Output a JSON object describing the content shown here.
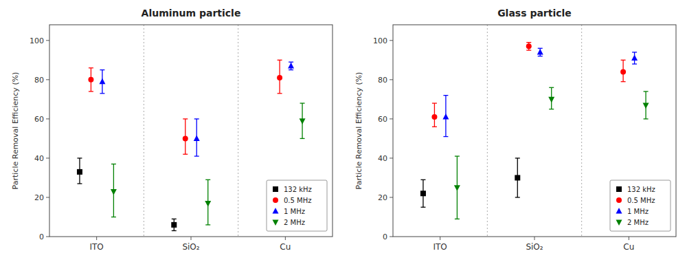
{
  "chart_data": [
    {
      "type": "errorbar",
      "title": "Aluminum particle",
      "categories": [
        "ITO",
        "SiO₂",
        "Cu"
      ],
      "ylabel": "Particle Removal Efficiency (%)",
      "series": [
        {
          "name": "132 kHz",
          "color": "black",
          "marker": "square",
          "values": [
            33,
            6,
            null
          ],
          "error_low": [
            6,
            3,
            null
          ],
          "error_high": [
            7,
            3,
            null
          ]
        },
        {
          "name": "0.5 MHz",
          "color": "red",
          "marker": "circle",
          "values": [
            80,
            50,
            81
          ],
          "error_low": [
            6,
            8,
            8
          ],
          "error_high": [
            6,
            10,
            9
          ]
        },
        {
          "name": "1 MHz",
          "color": "blue",
          "marker": "triangle-up",
          "values": [
            79,
            50,
            87
          ],
          "error_low": [
            6,
            9,
            2
          ],
          "error_high": [
            6,
            10,
            2
          ]
        },
        {
          "name": "2 MHz",
          "color": "green",
          "marker": "triangle-down",
          "values": [
            23,
            17,
            59
          ],
          "error_low": [
            13,
            11,
            9
          ],
          "error_high": [
            14,
            12,
            9
          ]
        }
      ],
      "ylim": [
        0,
        108
      ],
      "yticks": [
        0,
        20,
        40,
        60,
        80,
        100
      ],
      "grid": false,
      "legend": "lower right"
    },
    {
      "type": "errorbar",
      "title": "Glass particle",
      "categories": [
        "ITO",
        "SiO₂",
        "Cu"
      ],
      "ylabel": "Particle Removal Efficiency (%)",
      "series": [
        {
          "name": "132 kHz",
          "color": "black",
          "marker": "square",
          "values": [
            22,
            30,
            null
          ],
          "error_low": [
            7,
            10,
            null
          ],
          "error_high": [
            7,
            10,
            null
          ]
        },
        {
          "name": "0.5 MHz",
          "color": "red",
          "marker": "circle",
          "values": [
            61,
            97,
            84
          ],
          "error_low": [
            5,
            2,
            5
          ],
          "error_high": [
            7,
            2,
            6
          ]
        },
        {
          "name": "1 MHz",
          "color": "blue",
          "marker": "triangle-up",
          "values": [
            61,
            94,
            91
          ],
          "error_low": [
            10,
            2,
            3
          ],
          "error_high": [
            11,
            2,
            3
          ]
        },
        {
          "name": "2 MHz",
          "color": "green",
          "marker": "triangle-down",
          "values": [
            25,
            70,
            67
          ],
          "error_low": [
            16,
            5,
            7
          ],
          "error_high": [
            16,
            6,
            7
          ]
        }
      ],
      "ylim": [
        0,
        108
      ],
      "yticks": [
        0,
        20,
        40,
        60,
        80,
        100
      ],
      "grid": false,
      "legend": "lower right"
    }
  ]
}
